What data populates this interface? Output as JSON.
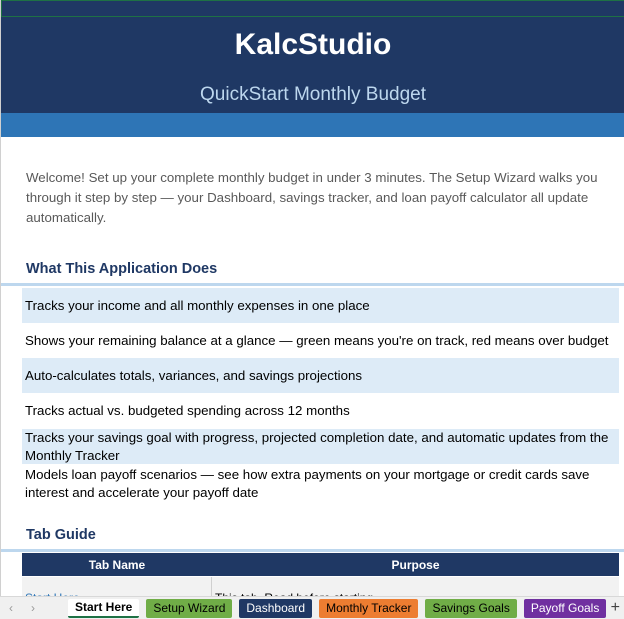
{
  "header": {
    "title": "KalcStudio",
    "subtitle": "QuickStart Monthly Budget"
  },
  "welcome": "Welcome! Set up your complete monthly budget in under 3 minutes. The Setup Wizard walks you through it step by step — your Dashboard, savings tracker, and loan payoff calculator all update automatically.",
  "features": {
    "heading": "What This Application Does",
    "items": [
      "Tracks your income and all monthly expenses in one place",
      "Shows your remaining balance at a glance — green means you're on track, red means over budget",
      "Auto-calculates totals, variances, and savings projections",
      "Tracks actual vs. budgeted spending across 12 months",
      "Tracks your savings goal with progress, projected completion date, and automatic updates from the Monthly Tracker",
      "Models loan payoff scenarios — see how extra payments on your mortgage or credit cards save interest and accelerate your payoff date"
    ]
  },
  "tab_guide": {
    "heading": "Tab Guide",
    "columns": [
      "Tab Name",
      "Purpose"
    ],
    "rows": [
      [
        "Start Here",
        "This tab. Read before starting."
      ]
    ]
  },
  "sheet_tabs": [
    {
      "label": "Start Here",
      "bg": "#ffffff",
      "fg": "#000000",
      "active": true
    },
    {
      "label": "Setup Wizard",
      "bg": "#70ad47",
      "fg": "#000000"
    },
    {
      "label": "Dashboard",
      "bg": "#1f3864",
      "fg": "#ffffff"
    },
    {
      "label": "Monthly Tracker",
      "bg": "#ed7d31",
      "fg": "#000000"
    },
    {
      "label": "Savings Goals",
      "bg": "#70ad47",
      "fg": "#000000"
    },
    {
      "label": "Payoff Goals",
      "bg": "#7030a0",
      "fg": "#ffffff"
    }
  ],
  "icons": {
    "prev": "chevron-left-icon",
    "next": "chevron-right-icon",
    "add": "plus-icon"
  }
}
